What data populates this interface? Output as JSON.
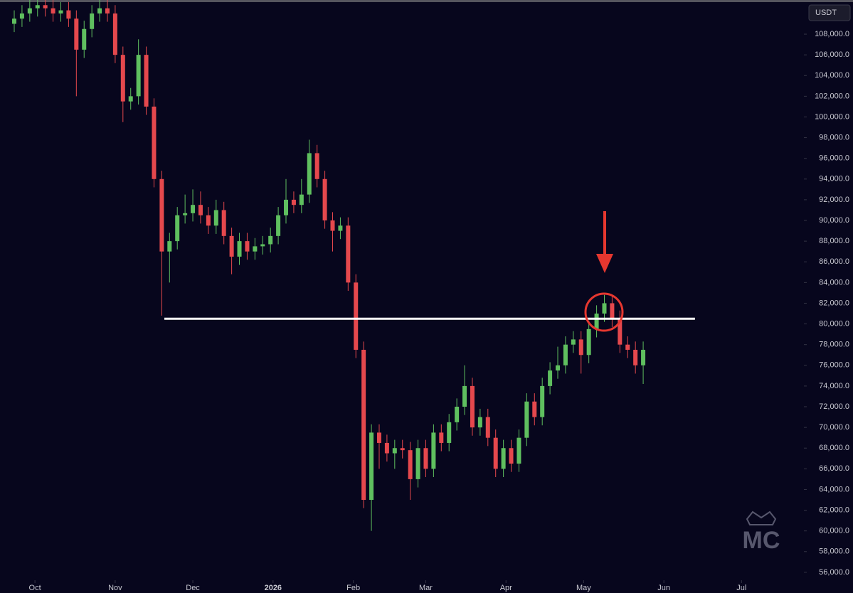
{
  "chart_data": {
    "type": "candlestick",
    "axis_label": "USDT",
    "watermark": "MC",
    "up_color": "#5fbf5f",
    "down_color": "#e5484d",
    "x": [
      -8,
      -5,
      -2,
      1,
      4,
      7,
      10,
      13,
      16,
      19,
      22,
      25,
      28,
      31,
      34,
      37,
      40,
      43,
      46,
      49,
      52,
      55,
      58,
      61,
      64,
      67,
      70,
      73,
      76,
      79,
      82,
      85,
      88,
      91,
      94,
      97,
      100,
      103,
      106,
      109,
      112,
      115,
      118,
      121,
      124,
      127,
      130,
      133,
      136,
      139,
      142,
      145,
      148,
      151,
      154,
      157,
      160,
      163,
      166,
      169,
      172,
      175,
      178,
      181,
      184,
      187,
      190,
      193,
      196,
      199,
      202,
      205,
      208,
      211,
      214,
      217,
      220,
      223,
      226,
      229,
      232,
      235
    ],
    "open": [
      109000,
      109500,
      110000,
      110500,
      110800,
      110500,
      110000,
      110300,
      109500,
      106500,
      108500,
      110000,
      110500,
      110000,
      106000,
      101500,
      102000,
      106000,
      101000,
      94000,
      87000,
      88000,
      90500,
      90700,
      91500,
      90500,
      89500,
      91000,
      88500,
      86500,
      88000,
      87000,
      87500,
      87700,
      88500,
      90500,
      92000,
      91500,
      92500,
      96500,
      94000,
      90000,
      89000,
      89500,
      84000,
      77500,
      63000,
      69500,
      68500,
      67500,
      68000,
      67800,
      65000,
      68000,
      66000,
      69500,
      68500,
      70500,
      72000,
      74000,
      70000,
      71000,
      69000,
      66000,
      68000,
      66500,
      69000,
      72500,
      71000,
      74000,
      75500,
      76000,
      78000,
      78500,
      77000,
      79500,
      81000,
      82000,
      80500,
      78000,
      77500,
      76000
    ],
    "high": [
      110300,
      110800,
      111300,
      111600,
      111600,
      111300,
      111100,
      111100,
      110300,
      109300,
      110800,
      111300,
      111300,
      110800,
      106800,
      102800,
      107500,
      106800,
      101800,
      94800,
      88800,
      91300,
      92500,
      93000,
      92800,
      91300,
      92000,
      91800,
      89300,
      88800,
      88800,
      88300,
      88500,
      89300,
      91300,
      94000,
      92800,
      94000,
      97800,
      97300,
      94800,
      90800,
      90300,
      90300,
      84800,
      78300,
      70300,
      70300,
      69300,
      68800,
      68800,
      68600,
      68800,
      68800,
      70300,
      70300,
      71300,
      72800,
      76000,
      74800,
      71800,
      71800,
      69800,
      68800,
      68800,
      69800,
      73300,
      73300,
      74800,
      76300,
      77800,
      78800,
      79300,
      79300,
      80300,
      81800,
      82800,
      82800,
      81300,
      78800,
      78300,
      78300
    ],
    "low": [
      108200,
      108700,
      109200,
      109700,
      109700,
      109200,
      109200,
      108700,
      102000,
      105700,
      107700,
      109200,
      109200,
      105200,
      99500,
      100700,
      101200,
      100200,
      93200,
      80800,
      84000,
      87200,
      89700,
      89900,
      89700,
      88700,
      88700,
      87700,
      84800,
      85700,
      86200,
      86200,
      86700,
      86900,
      87700,
      89700,
      90700,
      90700,
      91700,
      93200,
      89200,
      87000,
      88200,
      83200,
      76700,
      62200,
      60000,
      66000,
      66700,
      66000,
      67000,
      63000,
      64200,
      65200,
      65200,
      67700,
      67700,
      69700,
      71200,
      69200,
      69200,
      68200,
      65200,
      65200,
      65700,
      65700,
      68200,
      70200,
      70200,
      73200,
      74700,
      75200,
      77200,
      75200,
      76200,
      78700,
      80200,
      79700,
      77200,
      76700,
      75200,
      74200
    ],
    "close": [
      109500,
      110000,
      110500,
      110800,
      110500,
      110000,
      110300,
      109500,
      106500,
      108500,
      110000,
      110500,
      110000,
      106000,
      101500,
      102000,
      106000,
      101000,
      94000,
      87000,
      88000,
      90500,
      90700,
      91500,
      90500,
      89500,
      91000,
      88500,
      86500,
      88000,
      87000,
      87500,
      87700,
      88500,
      90500,
      92000,
      91500,
      92500,
      96500,
      94000,
      90000,
      89000,
      89500,
      84000,
      77500,
      63000,
      69500,
      68500,
      67500,
      68000,
      67800,
      65000,
      68000,
      66000,
      69500,
      68500,
      70500,
      72000,
      74000,
      70000,
      71000,
      69000,
      66000,
      68000,
      66500,
      69000,
      72500,
      71000,
      74000,
      75500,
      76000,
      78000,
      78500,
      77000,
      79500,
      81000,
      82000,
      80500,
      78000,
      77500,
      76000,
      77500
    ],
    "support_line": {
      "value": 80500,
      "x": [
        50,
        255
      ],
      "color": "#ffffff"
    },
    "xlim": [
      -13.5,
      296
    ],
    "xticks": [
      {
        "value": 0,
        "label": "Oct"
      },
      {
        "value": 31,
        "label": "Nov"
      },
      {
        "value": 61,
        "label": "Dec"
      },
      {
        "value": 92,
        "label": "2026"
      },
      {
        "value": 123,
        "label": "Feb"
      },
      {
        "value": 151,
        "label": "Mar"
      },
      {
        "value": 182,
        "label": "Apr"
      },
      {
        "value": 212,
        "label": "May"
      },
      {
        "value": 243,
        "label": "Jun"
      },
      {
        "value": 273,
        "label": "Jul"
      }
    ],
    "ylim": [
      54000,
      111300
    ],
    "yticks": [
      {
        "value": 56000,
        "label": "56,000.0"
      },
      {
        "value": 58000,
        "label": "58,000.0"
      },
      {
        "value": 60000,
        "label": "60,000.0"
      },
      {
        "value": 62000,
        "label": "62,000.0"
      },
      {
        "value": 64000,
        "label": "64,000.0"
      },
      {
        "value": 66000,
        "label": "66,000.0"
      },
      {
        "value": 68000,
        "label": "68,000.0"
      },
      {
        "value": 70000,
        "label": "70,000.0"
      },
      {
        "value": 72000,
        "label": "72,000.0"
      },
      {
        "value": 74000,
        "label": "74,000.0"
      },
      {
        "value": 76000,
        "label": "76,000.0"
      },
      {
        "value": 78000,
        "label": "78,000.0"
      },
      {
        "value": 80000,
        "label": "80,000.0"
      },
      {
        "value": 82000,
        "label": "82,000.0"
      },
      {
        "value": 84000,
        "label": "84,000.0"
      },
      {
        "value": 86000,
        "label": "86,000.0"
      },
      {
        "value": 88000,
        "label": "88,000.0"
      },
      {
        "value": 90000,
        "label": "90,000.0"
      },
      {
        "value": 92000,
        "label": "92,000.0"
      },
      {
        "value": 94000,
        "label": "94,000.0"
      },
      {
        "value": 96000,
        "label": "96,000.0"
      },
      {
        "value": 98000,
        "label": "98,000.0"
      },
      {
        "value": 100000,
        "label": "100,000.0"
      },
      {
        "value": 102000,
        "label": "102,000.0"
      },
      {
        "value": 104000,
        "label": "104,000.0"
      },
      {
        "value": 106000,
        "label": "106,000.0"
      },
      {
        "value": 108000,
        "label": "108,000.0"
      }
    ]
  }
}
